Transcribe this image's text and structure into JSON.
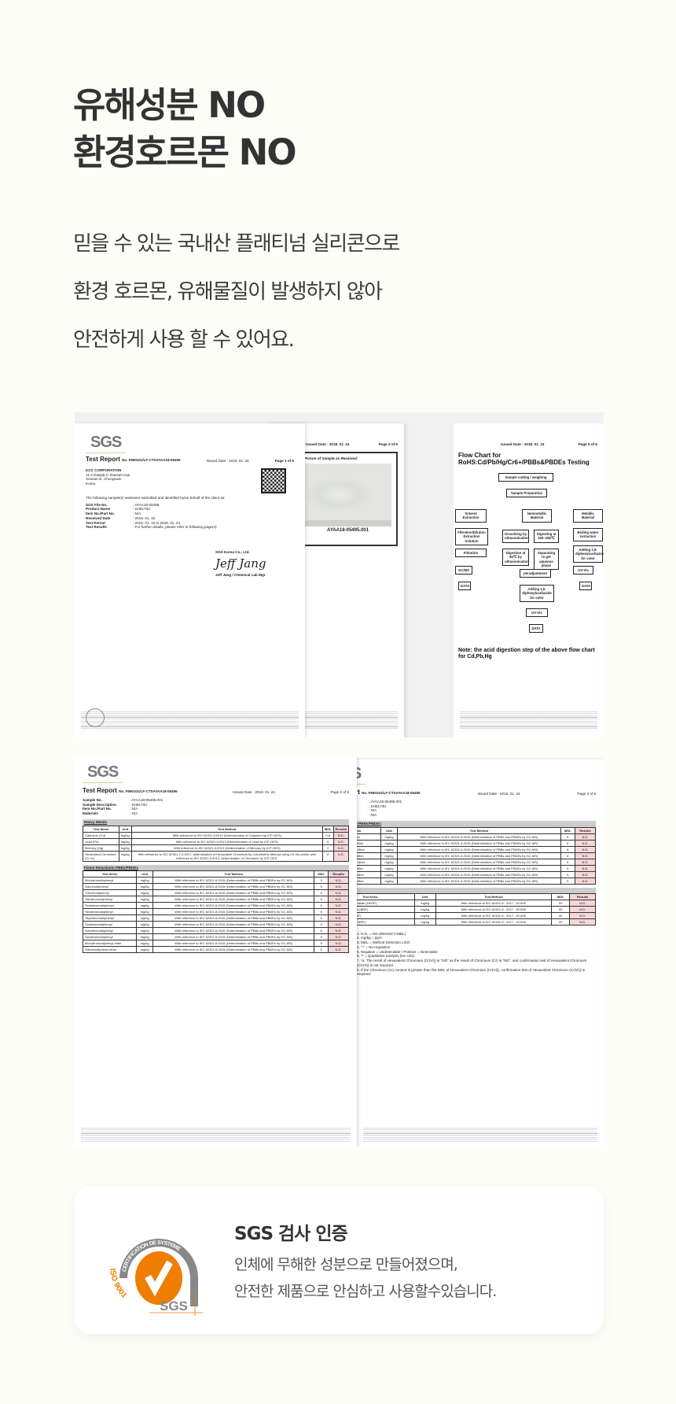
{
  "heading": {
    "line1": "유해성분 NO",
    "line2": "환경호르몬 NO"
  },
  "description": [
    "믿을 수 있는 국내산 플래티넘 실리콘으로",
    "환경 호르몬, 유해물질이 발생하지 않아",
    "안전하게 사용 할 수 있어요."
  ],
  "reports": {
    "logo": "SGS",
    "report_title": "Test Report",
    "report_no": "No. F690101/LF-CTSAYAA18-05495",
    "issued": "Issued Date : 2018. 01. 24",
    "page1": {
      "page": "Page 1 of 6",
      "client": [
        "KCC CORPORATION",
        "11-4 Daejuk-ri, Daesan-eup",
        "Seosan-si, Chungnam",
        "Korea"
      ],
      "intro": "The following sample(s) was/were submitted and identified by/on behalf of the client as:",
      "fields": [
        [
          "SGS File No.",
          ": AYAA18-05495"
        ],
        [
          "Product Name",
          ": SH5170U"
        ],
        [
          "Item No./Part No.",
          ": N/A"
        ],
        [
          "Received Date",
          ": 2018. 01. 19"
        ],
        [
          "Test Period",
          ": 2018. 01. 19 to 2018. 01. 24"
        ],
        [
          "Test Results",
          ": For further details, please refer to following page(s)"
        ]
      ],
      "company": "SGS Korea Co., Ltd.",
      "signature": "Jeff Jang",
      "signer": "Jeff Jang / Chemical Lab Mgr"
    },
    "page4": {
      "page": "Page 4 of 6",
      "picture_title": "Picture of Sample as Received:",
      "sample_id": "AYAA18-05495.001"
    },
    "page5": {
      "page": "Page 5 of 6",
      "chart_title": "Flow Chart for RoHS:Cd/Pb/Hg/Cr6+/PBBs&PBDEs Testing",
      "boxes": [
        "Sample cutting / weighing",
        "Sample Preparation",
        "Solvent Extraction",
        "Nonmetallic Material",
        "Metallic Material",
        "Filtration/Dilution Extraction Solution",
        "Dissolving by ultrasonication",
        "Digesting at 150~180℃",
        "Boiling water extraction",
        "Filtration",
        "Digestion at 85℃ by ultrasonication",
        "Separating to get aqueous phase",
        "Adding 1,5-diphenylcarbazide for color",
        "GC/MS",
        "pH adjustment",
        "UV-Vis",
        "DATA",
        "Adding 1,5-diphenylcarbazide for color",
        "UV-Vis",
        "DATA",
        "DATA"
      ],
      "note": "Note: the acid digestion step of the above flow chart for Cd,Pb,Hg"
    },
    "page2": {
      "page": "Page 2 of 6",
      "fields": [
        [
          "Sample No.",
          ": AYAA18-05495.001"
        ],
        [
          "Sample Description",
          ": SH5170U"
        ],
        [
          "Item No./Part No.",
          ": N/A"
        ],
        [
          "Materials",
          ": N/A"
        ]
      ],
      "headers": [
        "Test Items",
        "Unit",
        "Test Method",
        "MDL",
        "Results"
      ],
      "sections": [
        {
          "title": "Heavy Metals",
          "rows": [
            [
              "Cadmium (Cd)",
              "mg/kg",
              "With reference to IEC 62321-5:2013 (Determination of Cadmium by ICP-OES)",
              "0.5",
              "N.D."
            ],
            [
              "Lead (Pb)",
              "mg/kg",
              "With reference to IEC 62321-5:2013 (Determination of Lead by ICP-OES)",
              "5",
              "N.D."
            ],
            [
              "Mercury (Hg)",
              "mg/kg",
              "With reference to IEC 62321-4:2013 (Determination of Mercury by ICP-OES)",
              "2",
              "N.D."
            ],
            [
              "Hexavalent Chromium (Cr VI)",
              "mg/kg",
              "With reference to IEC 62321-7-2:2017, determination of Hexavalent Chromium by Colorimetric Method using UV-Vis and/or with reference to IEC 62321-5:2013, determination of Chromium by ICP-OES.",
              "8",
              "N.D."
            ]
          ]
        },
        {
          "title": "Flame Retardants-PBBs/PBDEs",
          "rows": [
            [
              "Monobromobiphenyl",
              "mg/kg",
              "With reference to IEC 62321-6:2015 (Determination of PBBs and PBDEs by GC-MS)",
              "5",
              "N.D."
            ],
            [
              "Dibromobiphenyl",
              "mg/kg",
              "With reference to IEC 62321-6:2015 (Determination of PBBs and PBDEs by GC-MS)",
              "5",
              "N.D."
            ],
            [
              "Tribromobiphenyl",
              "mg/kg",
              "With reference to IEC 62321-6:2015 (Determination of PBBs and PBDEs by GC-MS)",
              "5",
              "N.D."
            ],
            [
              "Tetrabromobiphenyl",
              "mg/kg",
              "With reference to IEC 62321-6:2015 (Determination of PBBs and PBDEs by GC-MS)",
              "5",
              "N.D."
            ],
            [
              "Pentabromobiphenyl",
              "mg/kg",
              "With reference to IEC 62321-6:2015 (Determination of PBBs and PBDEs by GC-MS)",
              "5",
              "N.D."
            ],
            [
              "Hexabromobiphenyl",
              "mg/kg",
              "With reference to IEC 62321-6:2015 (Determination of PBBs and PBDEs by GC-MS)",
              "5",
              "N.D."
            ],
            [
              "Heptabromobiphenyl",
              "mg/kg",
              "With reference to IEC 62321-6:2015 (Determination of PBBs and PBDEs by GC-MS)",
              "5",
              "N.D."
            ],
            [
              "Octabromobiphenyl",
              "mg/kg",
              "With reference to IEC 62321-6:2015 (Determination of PBBs and PBDEs by GC-MS)",
              "5",
              "N.D."
            ],
            [
              "Nonabromobiphenyl",
              "mg/kg",
              "With reference to IEC 62321-6:2015 (Determination of PBBs and PBDEs by GC-MS)",
              "5",
              "N.D."
            ],
            [
              "Decabromobiphenyl",
              "mg/kg",
              "With reference to IEC 62321-6:2015 (Determination of PBBs and PBDEs by GC-MS)",
              "5",
              "N.D."
            ],
            [
              "Monobromodiphenyl ether",
              "mg/kg",
              "With reference to IEC 62321-6:2015 (Determination of PBBs and PBDEs by GC-MS)",
              "5",
              "N.D."
            ],
            [
              "Dibromodiphenyl ether",
              "mg/kg",
              "With reference to IEC 62321-6:2015 (Determination of PBBs and PBDEs by GC-MS)",
              "5",
              "N.D."
            ]
          ]
        }
      ]
    },
    "page3": {
      "page": "Page 3 of 6",
      "fields": [
        [
          "Sample No.",
          ": AYAA18-05495.001"
        ],
        [
          "Sample Description",
          ": SH5170U"
        ],
        [
          "Item No./Part No.",
          ": N/A"
        ],
        [
          "Materials",
          ": N/A"
        ]
      ],
      "sections": [
        {
          "title": "Flame Retardants-PBBs/PBDEs",
          "rows": [
            [
              "Tribromodiphenyl ether",
              "mg/kg",
              "With reference to IEC 62321-6:2015 (Determination of PBBs and PBDEs by GC-MS)",
              "5",
              "N.D."
            ],
            [
              "Tetrabromodiphenyl ether",
              "mg/kg",
              "With reference to IEC 62321-6:2015 (Determination of PBBs and PBDEs by GC-MS)",
              "5",
              "N.D."
            ],
            [
              "Pentabromodiphenyl ether",
              "mg/kg",
              "With reference to IEC 62321-6:2015 (Determination of PBBs and PBDEs by GC-MS)",
              "5",
              "N.D."
            ],
            [
              "Hexabromodiphenyl ether",
              "mg/kg",
              "With reference to IEC 62321-6:2015 (Determination of PBBs and PBDEs by GC-MS)",
              "5",
              "N.D."
            ],
            [
              "Heptabromodiphenyl ether",
              "mg/kg",
              "With reference to IEC 62321-6:2015 (Determination of PBBs and PBDEs by GC-MS)",
              "5",
              "N.D."
            ],
            [
              "Octabromodiphenyl ether",
              "mg/kg",
              "With reference to IEC 62321-6:2015 (Determination of PBBs and PBDEs by GC-MS)",
              "5",
              "N.D."
            ],
            [
              "Nonabromodiphenyl ether",
              "mg/kg",
              "With reference to IEC 62321-6:2015 (Determination of PBBs and PBDEs by GC-MS)",
              "5",
              "N.D."
            ],
            [
              "Decabromodiphenyl ether",
              "mg/kg",
              "With reference to IEC 62321-6:2015 (Determination of PBBs and PBDEs by GC-MS)",
              "5",
              "N.D."
            ]
          ]
        },
        {
          "title": "",
          "rows": [
            [
              "Bis(2-ethylhexyl) phthalate (DEHP)",
              "mg/kg",
              "With reference to IEC 62321-8 : 2017 , GC/MS",
              "50",
              "N.D."
            ],
            [
              "Butyl benzyl phthalate (BBP)",
              "mg/kg",
              "With reference to IEC 62321-8 : 2017 , GC/MS",
              "50",
              "N.D."
            ],
            [
              "Dibutyl phthalate (DBP)",
              "mg/kg",
              "With reference to IEC 62321-8 : 2017 , GC/MS",
              "50",
              "N.D."
            ],
            [
              "Diisobutyl phthalate (DIBP)",
              "mg/kg",
              "With reference to IEC 62321-8 : 2017 , GC/MS",
              "50",
              "N.D."
            ]
          ]
        }
      ],
      "notes": [
        "1. N.D. = Not detected (<MDL)",
        "2. mg/kg = ppm",
        "3. MDL = Method Detection Limit",
        "4. \"-\" = No regulation",
        "5. Negative = Undetectable / Positive = Detectable",
        "6. ** = Qualitative analysis (No Unit)",
        "7. *a. The result of Hexavalent Chromium (Cr(VI)) is \"ND\" as the result of Chromium (Cr) is \"ND\", and confirmation test of Hexavalent Chromium (Cr(VI)) is not required.",
        "b. If the Chromium (Cr) content is greater than the MDL of Hexavalent Chromium (Cr(VI)), confirmation test of Hexavalent Chromium (Cr(VI)) is required."
      ]
    }
  },
  "certification": {
    "title": "SGS 검사 인증",
    "lines": [
      "인체에 무해한 성분으로 만들어졌으며,",
      "안전한 제품으로 안심하고 사용할수있습니다."
    ],
    "logo": {
      "arc_text": "CERTIFICATION DE SYSTEME",
      "standard": "ISO 9001",
      "brand": "SGS",
      "orange": "#ef7d00",
      "gray": "#888888"
    }
  }
}
